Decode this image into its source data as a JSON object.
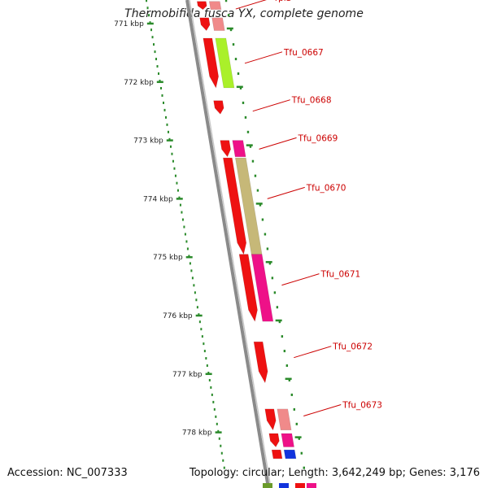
{
  "title": "Thermobifida fusca YX, complete genome",
  "footer": {
    "accession": "Accession: NC_007333",
    "stats": "Topology: circular; Length: 3,642,249 bp; Genes: 3,176"
  },
  "colors": {
    "backbone": "#8a8a8a",
    "tick": "#2a8a2a",
    "gene_red": "#ee1111",
    "gene_pink": "#f08a8a",
    "gene_lime": "#aaf02a",
    "gene_magenta": "#ee1188",
    "gene_olive": "#c6b878",
    "gene_blue": "#1133dd",
    "gene_green": "#6a9a2a",
    "label": "#cc0000"
  },
  "ruler": {
    "unit": "kbp",
    "ticks": [
      {
        "kbp": 771,
        "label": "771 kbp"
      },
      {
        "kbp": 772,
        "label": "772 kbp"
      },
      {
        "kbp": 773,
        "label": "773 kbp"
      },
      {
        "kbp": 774,
        "label": "774 kbp"
      },
      {
        "kbp": 775,
        "label": "775 kbp"
      },
      {
        "kbp": 776,
        "label": "776 kbp"
      },
      {
        "kbp": 777,
        "label": "777 kbp"
      },
      {
        "kbp": 778,
        "label": "778 kbp"
      }
    ]
  },
  "genes": [
    {
      "name": "rplS",
      "start_kbp": 770.62,
      "end_kbp": 770.76,
      "arrow": true,
      "cog_color": "gene_pink"
    },
    {
      "name": "",
      "start_kbp": 770.9,
      "end_kbp": 771.12,
      "arrow": true,
      "cog_color": "gene_pink"
    },
    {
      "name": "Tfu_0667",
      "start_kbp": 771.25,
      "end_kbp": 772.1,
      "arrow": true,
      "cog_color": "gene_lime"
    },
    {
      "name": "Tfu_0668",
      "start_kbp": 772.32,
      "end_kbp": 772.55,
      "arrow": true,
      "cog_color": ""
    },
    {
      "name": "Tfu_0669",
      "start_kbp": 773.0,
      "end_kbp": 773.28,
      "arrow": true,
      "cog_color": "gene_magenta"
    },
    {
      "name": "Tfu_0670",
      "start_kbp": 773.3,
      "end_kbp": 774.95,
      "arrow": true,
      "cog_color": "gene_olive"
    },
    {
      "name": "Tfu_0671",
      "start_kbp": 774.95,
      "end_kbp": 776.1,
      "arrow": true,
      "cog_color": "gene_magenta"
    },
    {
      "name": "Tfu_0672",
      "start_kbp": 776.45,
      "end_kbp": 777.15,
      "arrow": true,
      "cog_color": ""
    },
    {
      "name": "Tfu_0673",
      "start_kbp": 777.6,
      "end_kbp": 777.96,
      "arrow": true,
      "cog_color": "gene_pink"
    },
    {
      "name": "",
      "start_kbp": 778.02,
      "end_kbp": 778.25,
      "arrow": true,
      "cog_color": "gene_magenta"
    },
    {
      "name": "",
      "start_kbp": 778.3,
      "end_kbp": 778.45,
      "arrow": false,
      "cog_color": "gene_blue"
    }
  ],
  "gene_labels": [
    {
      "text": "rplS",
      "kbp": 770.75
    },
    {
      "text": "Tfu_0667",
      "kbp": 771.68
    },
    {
      "text": "Tfu_0668",
      "kbp": 772.5
    },
    {
      "text": "Tfu_0669",
      "kbp": 773.15
    },
    {
      "text": "Tfu_0670",
      "kbp": 774.0
    },
    {
      "text": "Tfu_0671",
      "kbp": 775.48
    },
    {
      "text": "Tfu_0672",
      "kbp": 776.72
    },
    {
      "text": "Tfu_0673",
      "kbp": 777.72
    }
  ]
}
